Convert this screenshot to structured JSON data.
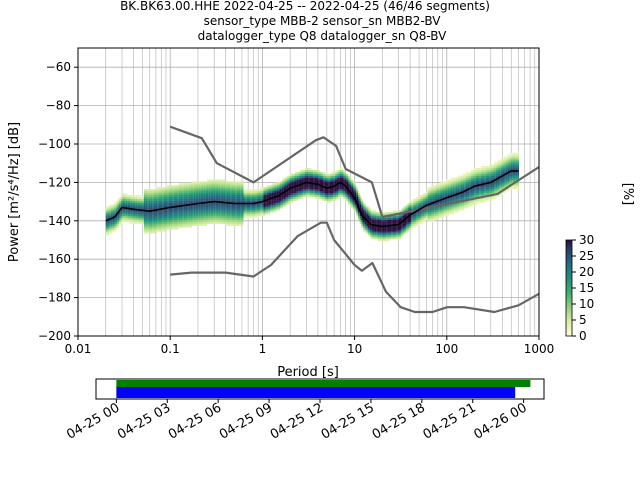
{
  "figure": {
    "title_line1": "BK.BK63.00.HHE   2022-04-25 -- 2022-04-25  (46/46 segments)",
    "title_line2": "sensor_type MBB-2 sensor_sn MBB2-BV",
    "title_line3": "datalogger_type Q8 datalogger_sn Q8-BV"
  },
  "chart_data": [
    {
      "type": "heatmap",
      "title": "BK.BK63.00.HHE   2022-04-25 -- 2022-04-25  (46/46 segments)",
      "xlabel": "Period [s]",
      "ylabel": "Power [m²/s⁴/Hz] [dB]",
      "xscale": "log",
      "xlim": [
        0.01,
        1000
      ],
      "ylim": [
        -200,
        -50
      ],
      "x_ticks": [
        "0.01",
        "0.1",
        "1",
        "10",
        "100",
        "1000"
      ],
      "y_ticks": [
        "−60",
        "−80",
        "−100",
        "−120",
        "−140",
        "−160",
        "−180",
        "−200"
      ],
      "x_tick_values": [
        0.01,
        0.1,
        1,
        10,
        100,
        1000
      ],
      "y_tick_values": [
        -60,
        -80,
        -100,
        -120,
        -140,
        -160,
        -180,
        -200
      ],
      "grid": true,
      "colorbar": {
        "label": "[%]",
        "range": [
          0,
          30
        ],
        "ticks": [
          "0",
          "5",
          "10",
          "15",
          "20",
          "25",
          "30"
        ],
        "tick_values": [
          0,
          5,
          10,
          15,
          20,
          25,
          30
        ]
      },
      "series": [
        {
          "role": "mean",
          "color": "#000000",
          "points": [
            [
              0.02,
              -140
            ],
            [
              0.025,
              -138
            ],
            [
              0.03,
              -133
            ],
            [
              0.04,
              -134
            ],
            [
              0.06,
              -135
            ],
            [
              0.1,
              -133
            ],
            [
              0.2,
              -131
            ],
            [
              0.3,
              -130
            ],
            [
              0.5,
              -131
            ],
            [
              0.8,
              -131
            ],
            [
              1,
              -130
            ],
            [
              1.5,
              -127
            ],
            [
              2,
              -123
            ],
            [
              3,
              -120
            ],
            [
              4,
              -121
            ],
            [
              5,
              -123
            ],
            [
              6,
              -122
            ],
            [
              7,
              -120
            ],
            [
              8,
              -122
            ],
            [
              10,
              -128
            ],
            [
              12,
              -137
            ],
            [
              15,
              -142
            ],
            [
              20,
              -143
            ],
            [
              30,
              -142
            ],
            [
              40,
              -137
            ],
            [
              60,
              -132
            ],
            [
              100,
              -128
            ],
            [
              150,
              -125
            ],
            [
              200,
              -122
            ],
            [
              300,
              -120
            ],
            [
              500,
              -114
            ],
            [
              600,
              -114
            ]
          ]
        },
        {
          "role": "NHNM",
          "color": "#666666",
          "points": [
            [
              0.1,
              -91
            ],
            [
              0.22,
              -97
            ],
            [
              0.32,
              -110
            ],
            [
              0.8,
              -120
            ],
            [
              3.8,
              -98
            ],
            [
              4.6,
              -96.5
            ],
            [
              6.3,
              -101
            ],
            [
              8,
              -113
            ],
            [
              15.4,
              -120
            ],
            [
              20,
              -138
            ],
            [
              354.8,
              -126
            ],
            [
              1000,
              -112
            ]
          ]
        },
        {
          "role": "NLNM",
          "color": "#666666",
          "points": [
            [
              0.1,
              -168
            ],
            [
              0.17,
              -167
            ],
            [
              0.4,
              -167
            ],
            [
              0.8,
              -169
            ],
            [
              1.24,
              -163
            ],
            [
              2.4,
              -148
            ],
            [
              4.3,
              -141
            ],
            [
              5,
              -141
            ],
            [
              6,
              -150
            ],
            [
              10,
              -163
            ],
            [
              12,
              -166
            ],
            [
              15.6,
              -162
            ],
            [
              21.9,
              -177
            ],
            [
              31.6,
              -185
            ],
            [
              45,
              -187.5
            ],
            [
              70,
              -187.5
            ],
            [
              101,
              -185
            ],
            [
              154,
              -185
            ],
            [
              328,
              -187.5
            ],
            [
              600,
              -184
            ],
            [
              1000,
              -178
            ]
          ]
        }
      ]
    },
    {
      "type": "timeline",
      "x_ticks": [
        "04-25 00",
        "04-25 03",
        "04-25 06",
        "04-25 09",
        "04-25 12",
        "04-25 15",
        "04-25 18",
        "04-25 21",
        "04-26 00"
      ],
      "x_tick_hours": [
        0,
        3,
        6,
        9,
        12,
        15,
        18,
        21,
        24
      ],
      "xlim_hours": [
        -1.2,
        25.2
      ],
      "bars": [
        {
          "role": "data-availability",
          "color": "#008000",
          "start_hour": 0,
          "end_hour": 24.4
        },
        {
          "role": "psd-segments",
          "color": "#0000ff",
          "start_hour": 0,
          "end_hour": 23.5
        }
      ]
    }
  ]
}
